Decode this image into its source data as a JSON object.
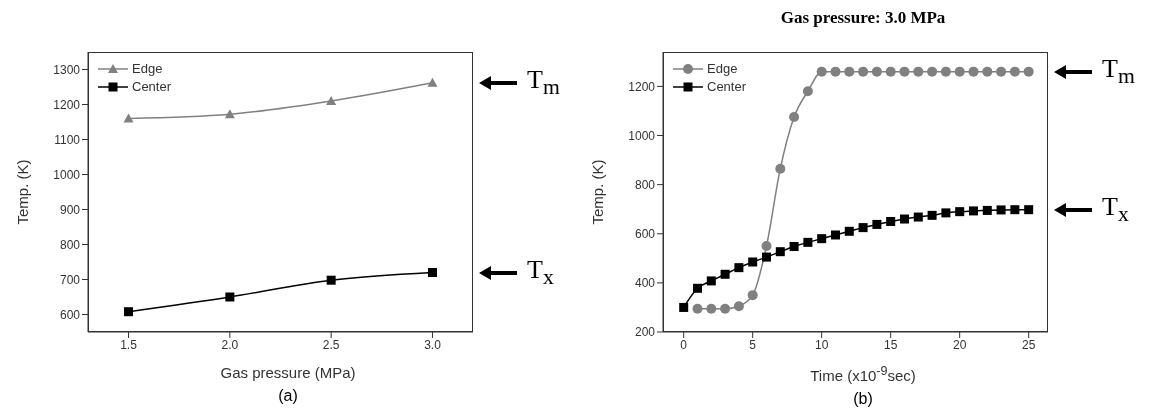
{
  "chart_data": [
    {
      "type": "line",
      "xlabel": "Gas pressure (MPa)",
      "ylabel": "Temp. (K)",
      "x": [
        1.5,
        2.0,
        2.5,
        3.0
      ],
      "series": [
        {
          "name": "Edge",
          "color": "#808080",
          "marker": "triangle",
          "values": [
            1160,
            1172,
            1210,
            1262
          ]
        },
        {
          "name": "Center",
          "color": "#000000",
          "marker": "square",
          "values": [
            608,
            650,
            698,
            720
          ]
        }
      ],
      "xlim": [
        1.3,
        3.2
      ],
      "xticks": [
        1.5,
        {
          "value": 2,
          "label": "2.0"
        },
        2.5,
        {
          "value": 3,
          "label": "3.0"
        }
      ],
      "ylim": [
        550,
        1350
      ],
      "yticks": [
        600,
        700,
        800,
        900,
        1000,
        1100,
        1200,
        1300
      ],
      "grid": false,
      "legend": "top left",
      "line_style": "solid",
      "annotations": [
        "T$_{m}$",
        "T$_{x}$",
        "(a)"
      ]
    },
    {
      "type": "line",
      "title": "Gas pressure: 3.0 MPa",
      "xlabel": "Time (x10$^{-9}$sec)",
      "ylabel": "Temp. (K)",
      "x": [
        0,
        1,
        2,
        3,
        4,
        5,
        6,
        7,
        8,
        9,
        10,
        11,
        12,
        13,
        14,
        15,
        16,
        17,
        18,
        19,
        20,
        21,
        22,
        23,
        24,
        25
      ],
      "series": [
        {
          "name": "Edge",
          "color": "#808080",
          "marker": "circle",
          "values": [
            null,
            295,
            295,
            295,
            305,
            350,
            550,
            865,
            1075,
            1180,
            1260,
            1260,
            1260,
            1260,
            1260,
            1260,
            1260,
            1260,
            1260,
            1260,
            1260,
            1260,
            1260,
            1260,
            1260,
            1260
          ]
        },
        {
          "name": "Center",
          "color": "#000000",
          "marker": "square",
          "values": [
            300,
            378,
            408,
            435,
            462,
            485,
            505,
            527,
            548,
            565,
            580,
            595,
            610,
            625,
            638,
            650,
            660,
            668,
            675,
            685,
            690,
            693,
            695,
            697,
            698,
            698
          ]
        }
      ],
      "xlim": [
        -1.5,
        26.4
      ],
      "xticks": [
        0,
        5,
        10,
        15,
        20,
        25
      ],
      "ylim": [
        200,
        1340
      ],
      "yticks": [
        200,
        400,
        600,
        800,
        1000,
        1200
      ],
      "grid": false,
      "legend": "top left",
      "line_style": "solid",
      "annotations": [
        "T$_{m}$",
        "T$_{x}$",
        "(b)"
      ]
    }
  ]
}
